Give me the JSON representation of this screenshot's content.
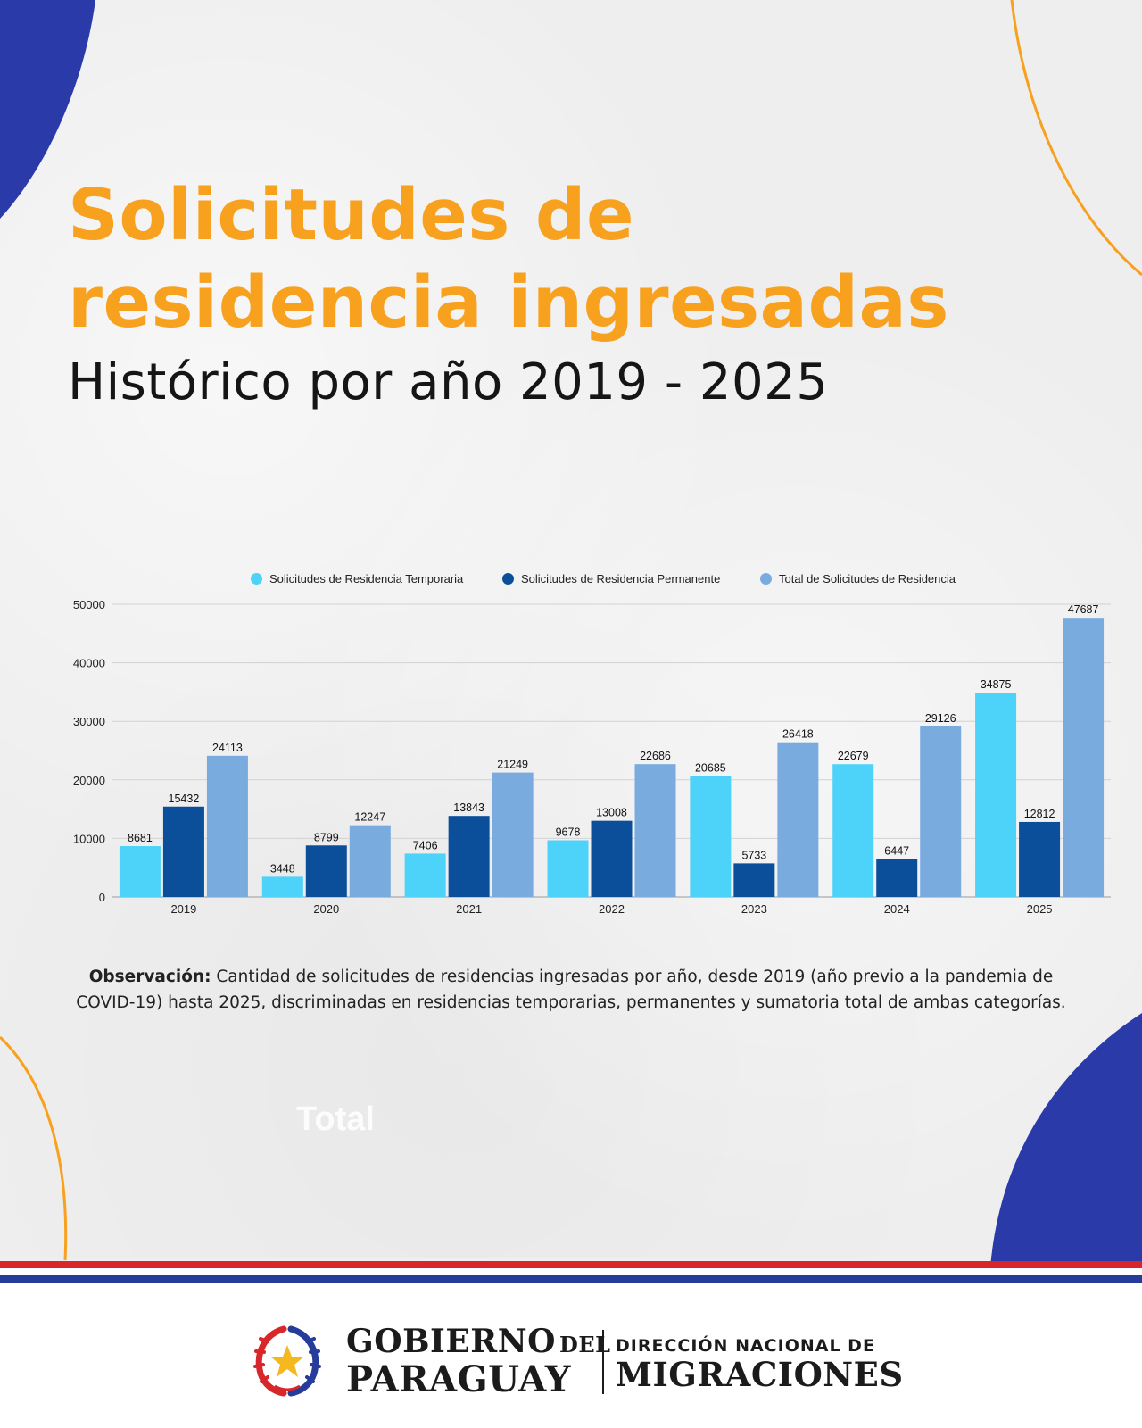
{
  "header": {
    "title_line1": "Solicitudes de",
    "title_line2": "residencia ingresadas",
    "subtitle": "Histórico por año 2019 - 2025"
  },
  "colors": {
    "temporaria": "#4dd3fa",
    "permanente": "#0b4f9b",
    "total": "#79abdf",
    "accent_orange": "#f7a11f",
    "deco_blue": "#2a3aa8"
  },
  "chart_data": {
    "type": "bar",
    "categories": [
      "2019",
      "2020",
      "2021",
      "2022",
      "2023",
      "2024",
      "2025"
    ],
    "series": [
      {
        "name": "Solicitudes de Residencia Temporaria",
        "values": [
          8681,
          3448,
          7406,
          9678,
          20685,
          22679,
          34875
        ]
      },
      {
        "name": "Solicitudes de Residencia Permanente",
        "values": [
          15432,
          8799,
          13843,
          13008,
          5733,
          6447,
          12812
        ]
      },
      {
        "name": "Total de Solicitudes de Residencia",
        "values": [
          24113,
          12247,
          21249,
          22686,
          26418,
          29126,
          47687
        ]
      }
    ],
    "yticks": [
      0,
      10000,
      20000,
      30000,
      40000,
      50000
    ],
    "ylim": [
      0,
      50000
    ],
    "legend_position": "top",
    "grid": true,
    "title": "",
    "xlabel": "",
    "ylabel": ""
  },
  "note": {
    "label": "Observación:",
    "text": " Cantidad de solicitudes de residencias ingresadas por año, desde 2019 (año previo a la pandemia de COVID-19) hasta 2025, discriminadas en residencias temporarias, permanentes y sumatoria total de ambas categorías."
  },
  "ghost_text": "Total",
  "footer": {
    "gov_line1": "GOBIERNO",
    "gov_del": "DEL",
    "gov_line2": "PARAGUAY",
    "dir_line1": "DIRECCIÓN NACIONAL DE",
    "dir_line2": "MIGRACIONES"
  }
}
